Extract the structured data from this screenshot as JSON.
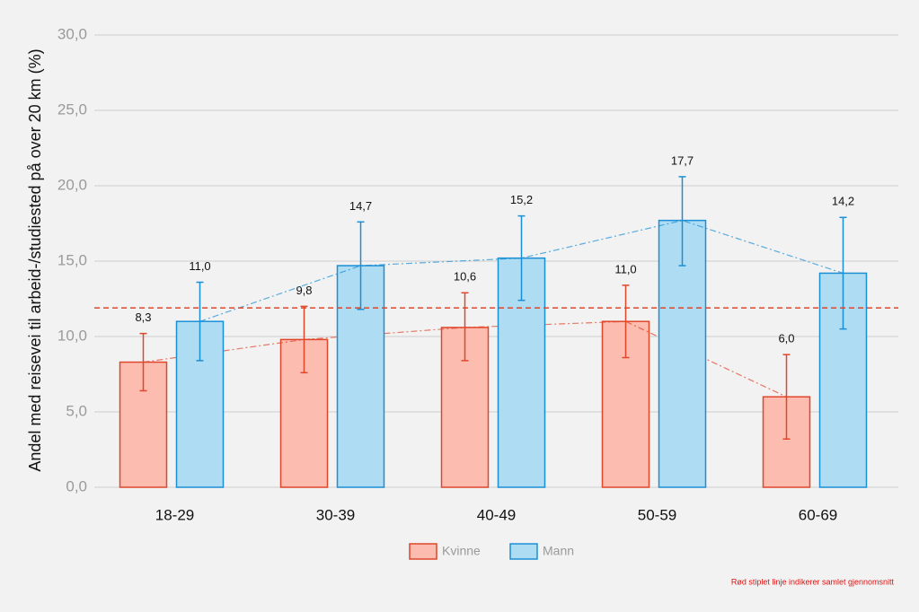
{
  "chart_data": {
    "type": "bar",
    "y_label": "Andel med reisevei til arbeid-/studiested på over 20 km (%)",
    "categories": [
      "18-29",
      "30-39",
      "40-49",
      "50-59",
      "60-69"
    ],
    "series": [
      {
        "name": "Kvinne",
        "color": "#fcbcb0",
        "edge": "#e0462a",
        "values": [
          8.3,
          9.8,
          10.6,
          11.0,
          6.0
        ],
        "value_labels": [
          "8,3",
          "9,8",
          "10,6",
          "11,0",
          "6,0"
        ],
        "ci_low": [
          6.4,
          7.6,
          8.4,
          8.6,
          3.2
        ],
        "ci_high": [
          10.2,
          12.0,
          12.9,
          13.4,
          8.8
        ]
      },
      {
        "name": "Mann",
        "color": "#aedcf2",
        "edge": "#1a8fd6",
        "values": [
          11.0,
          14.7,
          15.2,
          17.7,
          14.2
        ],
        "value_labels": [
          "11,0",
          "14,7",
          "15,2",
          "17,7",
          "14,2"
        ],
        "ci_low": [
          8.4,
          11.8,
          12.4,
          14.7,
          10.5
        ],
        "ci_high": [
          13.6,
          17.6,
          18.0,
          20.6,
          17.9
        ]
      }
    ],
    "reference_line": {
      "value": 11.9,
      "color": "#e0462a"
    },
    "caption": "Rød stiplet linje indikerer samlet gjennomsnitt",
    "ylim": [
      0,
      30
    ],
    "yticks": [
      {
        "value": 0,
        "label": "0,0"
      },
      {
        "value": 5,
        "label": "5,0"
      },
      {
        "value": 10,
        "label": "10,0"
      },
      {
        "value": 15,
        "label": "15,0"
      },
      {
        "value": 20,
        "label": "20,0"
      },
      {
        "value": 25,
        "label": "25,0"
      },
      {
        "value": 30,
        "label": "30,0"
      }
    ],
    "grid": true,
    "legend": "bottom"
  }
}
